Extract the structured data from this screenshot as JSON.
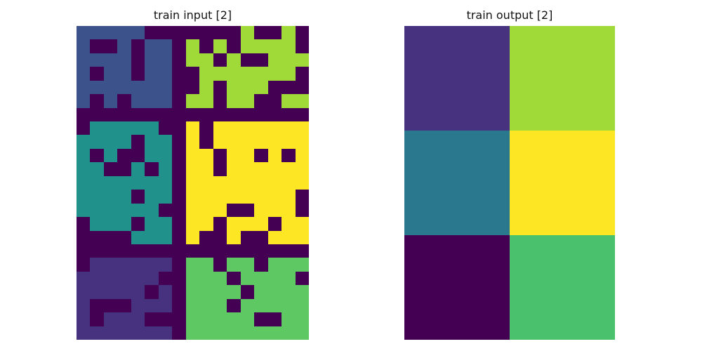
{
  "panels": {
    "input": {
      "title": "train input [2]"
    },
    "output": {
      "title": "train output [2]"
    }
  },
  "palette": {
    "0": "#440154",
    "1": "#3b528b",
    "2": "#21918c",
    "3": "#5ec962",
    "4": "#a0da39",
    "5": "#fde725",
    "6": "#46327e",
    "7": "#2a788e",
    "8": "#4ac16d"
  },
  "input_grid": [
    [
      1,
      1,
      1,
      1,
      1,
      0,
      0,
      0,
      0,
      0,
      0,
      0,
      4,
      0,
      0,
      4,
      0
    ],
    [
      1,
      0,
      0,
      1,
      0,
      1,
      1,
      0,
      4,
      0,
      4,
      0,
      4,
      4,
      4,
      4,
      0
    ],
    [
      1,
      1,
      1,
      1,
      0,
      1,
      1,
      0,
      4,
      4,
      0,
      4,
      0,
      0,
      4,
      4,
      4
    ],
    [
      1,
      0,
      1,
      1,
      0,
      1,
      1,
      0,
      0,
      4,
      4,
      4,
      4,
      4,
      4,
      4,
      0
    ],
    [
      1,
      1,
      1,
      1,
      1,
      1,
      1,
      0,
      0,
      4,
      0,
      4,
      4,
      4,
      0,
      0,
      0
    ],
    [
      1,
      0,
      1,
      0,
      1,
      1,
      1,
      0,
      4,
      4,
      0,
      4,
      4,
      0,
      0,
      4,
      4
    ],
    [
      0,
      0,
      0,
      0,
      0,
      0,
      0,
      0,
      0,
      0,
      0,
      0,
      0,
      0,
      0,
      0,
      0
    ],
    [
      0,
      2,
      2,
      2,
      2,
      2,
      0,
      0,
      5,
      0,
      5,
      5,
      5,
      5,
      5,
      5,
      5
    ],
    [
      2,
      2,
      2,
      2,
      0,
      2,
      2,
      0,
      5,
      0,
      5,
      5,
      5,
      5,
      5,
      5,
      5
    ],
    [
      2,
      0,
      2,
      0,
      0,
      2,
      2,
      0,
      5,
      5,
      0,
      5,
      5,
      0,
      5,
      0,
      5
    ],
    [
      2,
      2,
      0,
      0,
      2,
      0,
      2,
      0,
      5,
      5,
      0,
      5,
      5,
      5,
      5,
      5,
      5
    ],
    [
      2,
      2,
      2,
      2,
      2,
      2,
      2,
      0,
      5,
      5,
      5,
      5,
      5,
      5,
      5,
      5,
      5
    ],
    [
      2,
      2,
      2,
      2,
      0,
      2,
      2,
      0,
      5,
      5,
      5,
      5,
      5,
      5,
      5,
      5,
      0
    ],
    [
      2,
      2,
      2,
      2,
      2,
      2,
      0,
      0,
      5,
      5,
      5,
      0,
      0,
      5,
      5,
      5,
      0
    ],
    [
      0,
      2,
      2,
      2,
      0,
      2,
      2,
      0,
      5,
      5,
      0,
      5,
      5,
      5,
      0,
      5,
      5
    ],
    [
      0,
      0,
      0,
      0,
      2,
      2,
      2,
      0,
      5,
      0,
      0,
      5,
      0,
      0,
      5,
      5,
      5
    ],
    [
      0,
      0,
      0,
      0,
      0,
      0,
      0,
      0,
      0,
      0,
      0,
      0,
      0,
      0,
      0,
      0,
      0
    ],
    [
      0,
      6,
      6,
      6,
      6,
      6,
      6,
      0,
      3,
      3,
      0,
      3,
      3,
      0,
      3,
      3,
      3
    ],
    [
      6,
      6,
      6,
      6,
      6,
      6,
      0,
      0,
      3,
      3,
      3,
      0,
      3,
      3,
      3,
      3,
      0
    ],
    [
      6,
      6,
      6,
      6,
      6,
      0,
      6,
      0,
      3,
      3,
      3,
      3,
      0,
      3,
      3,
      3,
      3
    ],
    [
      6,
      0,
      0,
      0,
      6,
      6,
      6,
      0,
      3,
      3,
      3,
      0,
      3,
      3,
      3,
      3,
      3
    ],
    [
      6,
      0,
      6,
      6,
      6,
      0,
      0,
      0,
      3,
      3,
      3,
      3,
      3,
      0,
      0,
      3,
      3
    ],
    [
      6,
      6,
      6,
      6,
      6,
      6,
      6,
      0,
      3,
      3,
      3,
      3,
      3,
      3,
      3,
      3,
      3
    ]
  ],
  "output_grid": [
    [
      6,
      4
    ],
    [
      7,
      5
    ],
    [
      0,
      8
    ]
  ]
}
